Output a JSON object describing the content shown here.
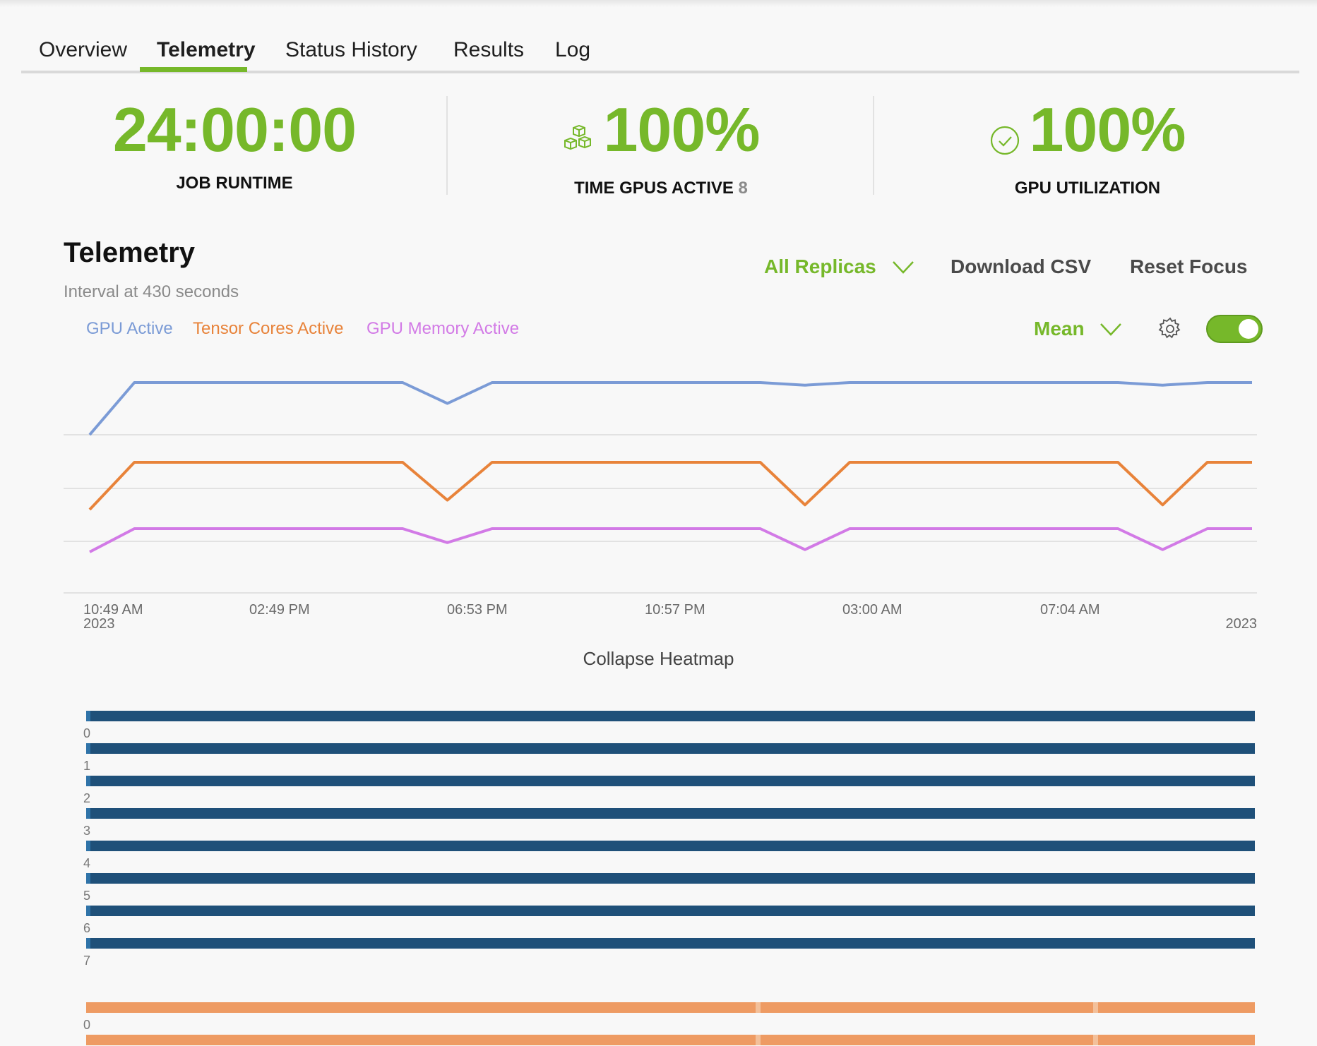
{
  "tabs": [
    {
      "label": "Overview",
      "active": false
    },
    {
      "label": "Telemetry",
      "active": true
    },
    {
      "label": "Status History",
      "active": false
    },
    {
      "label": "Results",
      "active": false
    },
    {
      "label": "Log",
      "active": false
    }
  ],
  "kpis": {
    "runtime": {
      "value": "24:00:00",
      "label": "JOB RUNTIME"
    },
    "gpus_active": {
      "value": "100%",
      "label": "TIME GPUS ACTIVE",
      "count": "8",
      "icon": "cubes-icon"
    },
    "utilization": {
      "value": "100%",
      "label": "GPU UTILIZATION",
      "icon": "check-circle-icon"
    }
  },
  "telemetry": {
    "title": "Telemetry",
    "interval": "Interval at 430 seconds",
    "replicas_label": "All Replicas",
    "download_label": "Download CSV",
    "reset_label": "Reset Focus",
    "aggregation_label": "Mean",
    "toggle_on": true
  },
  "colors": {
    "accent": "#76b82a",
    "gpu_active": "#7b9bd6",
    "tensor": "#e8833a",
    "memory": "#d27ae6",
    "heat_blue": "#1f5079",
    "heat_orange": "#ee9b63"
  },
  "chart_data": {
    "type": "line",
    "x_ticks": [
      "10:49 AM",
      "02:49 PM",
      "06:53 PM",
      "10:57 PM",
      "03:00 AM",
      "07:04 AM"
    ],
    "x_start_year": "2023",
    "x_end_label": "2023",
    "series": [
      {
        "name": "GPU Active",
        "color": "#7b9bd6",
        "values": [
          0,
          100,
          100,
          100,
          100,
          100,
          100,
          100,
          60,
          100,
          100,
          100,
          100,
          100,
          100,
          100,
          95,
          100,
          100,
          100,
          100,
          100,
          100,
          100,
          95,
          100,
          100
        ]
      },
      {
        "name": "Tensor Cores Active",
        "color": "#e8833a",
        "values": [
          0,
          100,
          100,
          100,
          100,
          100,
          100,
          100,
          20,
          100,
          100,
          100,
          100,
          100,
          100,
          100,
          10,
          100,
          100,
          100,
          100,
          100,
          100,
          100,
          10,
          100,
          100
        ]
      },
      {
        "name": "GPU Memory Active",
        "color": "#d27ae6",
        "values": [
          0,
          100,
          100,
          100,
          100,
          100,
          100,
          100,
          40,
          100,
          100,
          100,
          100,
          100,
          100,
          100,
          10,
          100,
          100,
          100,
          100,
          100,
          100,
          100,
          10,
          100,
          100
        ]
      }
    ]
  },
  "heatmap": {
    "collapse_label": "Collapse Heatmap",
    "gpu_rows": [
      "0",
      "1",
      "2",
      "3",
      "4",
      "5",
      "6",
      "7"
    ],
    "tensor_rows": [
      "0"
    ]
  }
}
